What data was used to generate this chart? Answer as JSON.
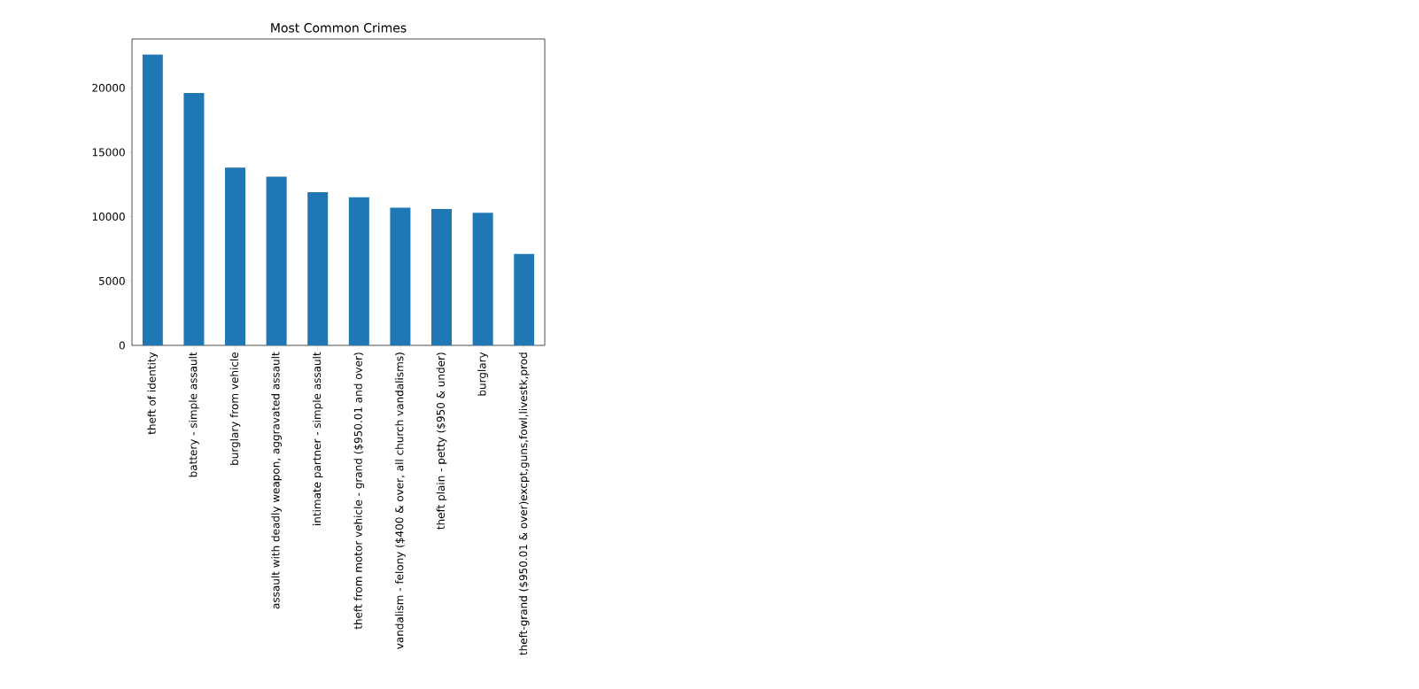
{
  "chart_data": {
    "type": "bar",
    "title": "Most Common Crimes",
    "categories": [
      "theft of identity",
      "battery - simple assault",
      "burglary from vehicle",
      "assault with deadly weapon, aggravated assault",
      "intimate partner - simple assault",
      "theft from motor vehicle - grand ($950.01 and over)",
      "vandalism - felony ($400 & over, all church vandalisms)",
      "theft plain - petty ($950 & under)",
      "burglary",
      "theft-grand ($950.01 & over)excpt,guns,fowl,livestk,prod"
    ],
    "values": [
      22600,
      19600,
      13800,
      13100,
      11900,
      11500,
      10700,
      10600,
      10300,
      7100
    ],
    "color": "#1f77b4",
    "ylim": [
      0,
      23800
    ],
    "yticks": [
      0,
      5000,
      10000,
      15000,
      20000
    ],
    "grid": false
  }
}
